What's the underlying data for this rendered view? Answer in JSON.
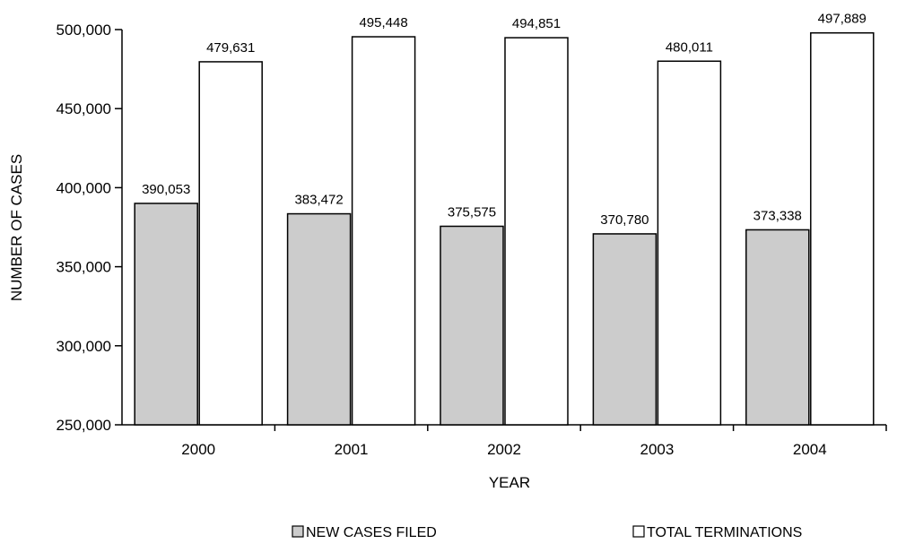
{
  "chart_data": {
    "type": "bar",
    "title": "",
    "xlabel": "YEAR",
    "ylabel": "NUMBER OF CASES",
    "categories": [
      "2000",
      "2001",
      "2002",
      "2003",
      "2004"
    ],
    "ylim": [
      250000,
      500000
    ],
    "yticks": [
      250000,
      300000,
      350000,
      400000,
      450000,
      500000
    ],
    "ytick_labels": [
      "250,000",
      "300,000",
      "350,000",
      "400,000",
      "450,000",
      "500,000"
    ],
    "grid": false,
    "legend_position": "bottom",
    "series": [
      {
        "name": "NEW CASES FILED",
        "color": "#cccccc",
        "values": [
          390053,
          383472,
          375575,
          370780,
          373338
        ],
        "labels": [
          "390,053",
          "383,472",
          "375,575",
          "370,780",
          "373,338"
        ]
      },
      {
        "name": "TOTAL TERMINATIONS",
        "color": "#ffffff",
        "values": [
          479631,
          495448,
          494851,
          480011,
          497889
        ],
        "labels": [
          "479,631",
          "495,448",
          "494,851",
          "480,011",
          "497,889"
        ]
      }
    ]
  }
}
